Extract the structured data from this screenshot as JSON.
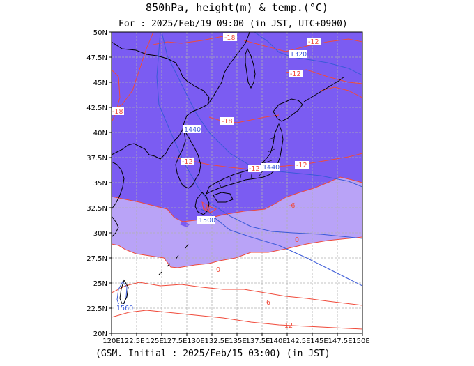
{
  "title": "850hPa, height(m) & temp.(°C)",
  "valid_time": "For : 2025/Feb/19 09:00 (in JST, UTC+0900)",
  "initial_time": "(GSM. Initial : 2025/Feb/15 03:00) (in JST)",
  "colors": {
    "cold_fill": "#7b5cf2",
    "mid_fill": "#b9a3f7",
    "warm_fill": "#ffffff",
    "temp_contour": "#f04a3a",
    "height_contour": "#3a5ad8",
    "coast": "#000000"
  },
  "axes": {
    "lon_ticks": [
      "120E",
      "122.5E",
      "125E",
      "127.5E",
      "130E",
      "132.5E",
      "135E",
      "137.5E",
      "140E",
      "142.5E",
      "145E",
      "147.5E",
      "150E"
    ],
    "lat_ticks": [
      "50N",
      "47.5N",
      "45N",
      "42.5N",
      "40N",
      "37.5N",
      "35N",
      "32.5N",
      "30N",
      "27.5N",
      "25N",
      "22.5N",
      "20N"
    ],
    "lon_range": [
      120,
      150
    ],
    "lat_range": [
      20,
      50
    ],
    "grid": true
  },
  "temp_labels": [
    "-18",
    "-18",
    "-18",
    "-12",
    "-12",
    "-12",
    "-12",
    "-12",
    "-6",
    "-6",
    "0",
    "0",
    "6",
    "12"
  ],
  "height_labels": [
    "1320",
    "1440",
    "1440",
    "1500",
    "1560"
  ]
}
